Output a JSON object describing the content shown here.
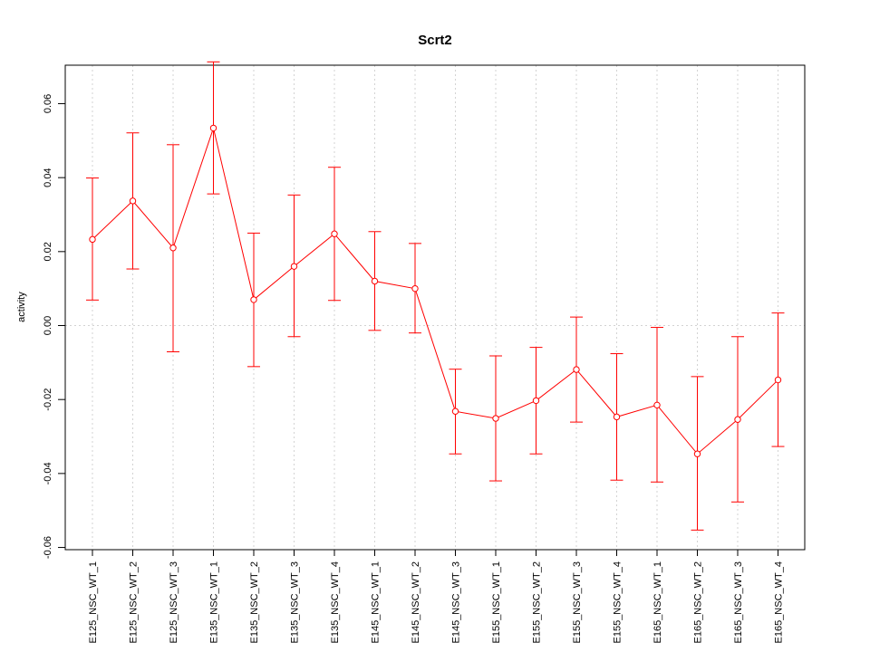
{
  "chart_data": {
    "type": "line",
    "title": "Scrt2",
    "xlabel": "",
    "ylabel": "activity",
    "ylim": [
      -0.06,
      0.07
    ],
    "yticks": [
      -0.06,
      -0.04,
      -0.02,
      0.0,
      0.02,
      0.04,
      0.06
    ],
    "ytick_labels": [
      "-0.06",
      "-0.04",
      "-0.02",
      "0.00",
      "0.02",
      "0.04",
      "0.06"
    ],
    "grid": true,
    "legend": "none",
    "color": "#ff0000",
    "grid_color": "#d3d3d3",
    "categories": [
      "E125_NSC_WT_1",
      "E125_NSC_WT_2",
      "E125_NSC_WT_3",
      "E135_NSC_WT_1",
      "E135_NSC_WT_2",
      "E135_NSC_WT_3",
      "E135_NSC_WT_4",
      "E145_NSC_WT_1",
      "E145_NSC_WT_2",
      "E145_NSC_WT_3",
      "E155_NSC_WT_1",
      "E155_NSC_WT_2",
      "E155_NSC_WT_3",
      "E155_NSC_WT_4",
      "E165_NSC_WT_1",
      "E165_NSC_WT_2",
      "E165_NSC_WT_3",
      "E165_NSC_WT_4"
    ],
    "values": [
      0.0233,
      0.0337,
      0.021,
      0.0534,
      0.007,
      0.016,
      0.0248,
      0.012,
      0.01,
      -0.0232,
      -0.0251,
      -0.0203,
      -0.0119,
      -0.0247,
      -0.0215,
      -0.0347,
      -0.0254,
      -0.0147
    ],
    "upper": [
      0.0399,
      0.0521,
      0.0489,
      0.0713,
      0.025,
      0.0353,
      0.0428,
      0.0254,
      0.0222,
      -0.0118,
      -0.0082,
      -0.0059,
      0.0023,
      -0.0076,
      -0.0005,
      -0.0138,
      -0.003,
      0.0034
    ],
    "lower": [
      0.0069,
      0.0153,
      -0.0071,
      0.0356,
      -0.0111,
      -0.003,
      0.0068,
      -0.0013,
      -0.002,
      -0.0347,
      -0.042,
      -0.0347,
      -0.0261,
      -0.0418,
      -0.0423,
      -0.0553,
      -0.0477,
      -0.0327
    ]
  }
}
